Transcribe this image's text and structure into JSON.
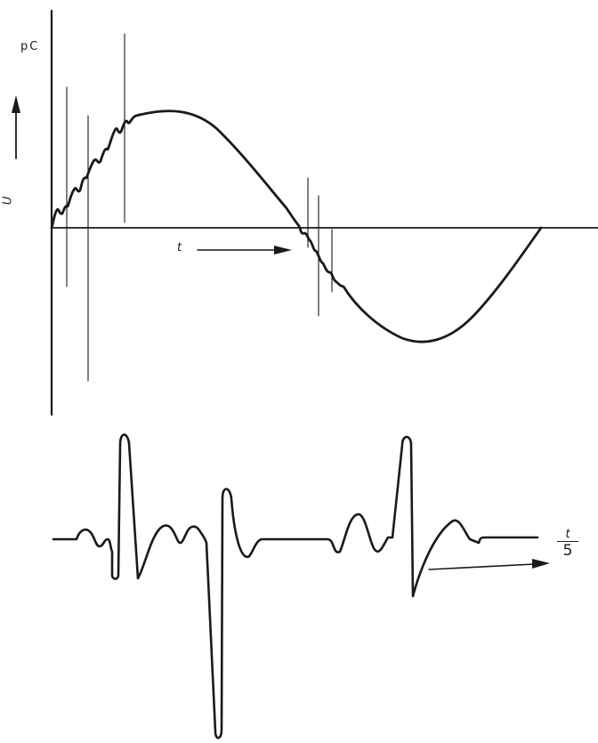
{
  "upper_plot": {
    "unit_label": "pC",
    "y_axis_label": "U",
    "time_label": "t"
  },
  "lower_plot": {
    "time_label_numerator": "t",
    "time_label_denominator": "5"
  },
  "colors": {
    "ink": "#1a1a1a",
    "background": "#ffffff"
  }
}
